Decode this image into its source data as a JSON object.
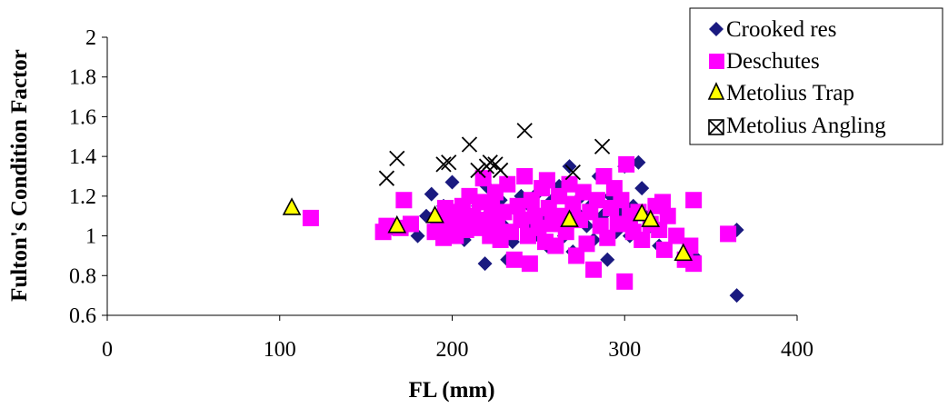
{
  "chart_data": {
    "type": "scatter",
    "title": "",
    "xlabel": "FL (mm)",
    "ylabel": "Fulton's Condition Factor",
    "xlim": [
      0,
      400
    ],
    "ylim": [
      0.6,
      2
    ],
    "x_ticks": [
      "0",
      "100",
      "200",
      "300",
      "400"
    ],
    "y_ticks": [
      "0.6",
      "0.8",
      "1",
      "1.2",
      "1.4",
      "1.6",
      "1.8",
      "2"
    ],
    "grid": false,
    "legend_position": "top-right",
    "series": [
      {
        "name": "Crooked res",
        "marker": "diamond",
        "color": "#1a1a80",
        "points": [
          [
            165,
            1.04
          ],
          [
            180,
            1.0
          ],
          [
            185,
            1.1
          ],
          [
            188,
            1.21
          ],
          [
            192,
            1.05
          ],
          [
            195,
            1.15
          ],
          [
            198,
            1.02
          ],
          [
            200,
            1.27
          ],
          [
            203,
            1.1
          ],
          [
            207,
            0.98
          ],
          [
            210,
            1.2
          ],
          [
            212,
            1.05
          ],
          [
            215,
            1.15
          ],
          [
            218,
            1.08
          ],
          [
            219,
            0.86
          ],
          [
            220,
            1.25
          ],
          [
            222,
            1.12
          ],
          [
            225,
            1.0
          ],
          [
            228,
            1.18
          ],
          [
            230,
            1.05
          ],
          [
            232,
            0.88
          ],
          [
            235,
            0.97
          ],
          [
            238,
            1.12
          ],
          [
            240,
            1.2
          ],
          [
            243,
            1.05
          ],
          [
            245,
            1.15
          ],
          [
            248,
            1.0
          ],
          [
            250,
            1.22
          ],
          [
            253,
            1.1
          ],
          [
            255,
            0.95
          ],
          [
            258,
            1.18
          ],
          [
            260,
            1.08
          ],
          [
            262,
            1.25
          ],
          [
            265,
            1.0
          ],
          [
            268,
            1.35
          ],
          [
            270,
            0.92
          ],
          [
            272,
            1.12
          ],
          [
            275,
            1.2
          ],
          [
            278,
            1.05
          ],
          [
            280,
            1.15
          ],
          [
            282,
            0.98
          ],
          [
            285,
            1.3
          ],
          [
            287,
            1.1
          ],
          [
            290,
            0.88
          ],
          [
            292,
            1.2
          ],
          [
            295,
            1.02
          ],
          [
            298,
            1.12
          ],
          [
            300,
            1.35
          ],
          [
            303,
            1.0
          ],
          [
            305,
            1.15
          ],
          [
            308,
            1.37
          ],
          [
            310,
            1.24
          ],
          [
            312,
            1.1
          ],
          [
            315,
            1.05
          ],
          [
            320,
            0.95
          ],
          [
            330,
            1.0
          ],
          [
            340,
            0.9
          ],
          [
            365,
            1.03
          ],
          [
            365,
            0.7
          ]
        ]
      },
      {
        "name": "Deschutes",
        "marker": "square",
        "color": "#ff00ff",
        "points": [
          [
            118,
            1.09
          ],
          [
            160,
            1.02
          ],
          [
            162,
            1.05
          ],
          [
            170,
            1.04
          ],
          [
            172,
            1.18
          ],
          [
            176,
            1.06
          ],
          [
            190,
            1.02
          ],
          [
            192,
            1.08
          ],
          [
            195,
            0.99
          ],
          [
            196,
            1.14
          ],
          [
            198,
            1.05
          ],
          [
            200,
            1.12
          ],
          [
            202,
            1.0
          ],
          [
            204,
            1.08
          ],
          [
            206,
            1.15
          ],
          [
            208,
            1.03
          ],
          [
            210,
            1.2
          ],
          [
            212,
            1.1
          ],
          [
            214,
            1.04
          ],
          [
            216,
            1.17
          ],
          [
            218,
            1.29
          ],
          [
            220,
            1.08
          ],
          [
            222,
            1.0
          ],
          [
            223,
            1.14
          ],
          [
            225,
            1.22
          ],
          [
            226,
            1.06
          ],
          [
            228,
            0.98
          ],
          [
            230,
            1.12
          ],
          [
            232,
            1.26
          ],
          [
            234,
            1.02
          ],
          [
            236,
            0.88
          ],
          [
            238,
            1.15
          ],
          [
            240,
            1.08
          ],
          [
            242,
            1.3
          ],
          [
            244,
            1.0
          ],
          [
            245,
            0.86
          ],
          [
            246,
            1.18
          ],
          [
            248,
            1.1
          ],
          [
            250,
            1.04
          ],
          [
            252,
            1.24
          ],
          [
            254,
            0.97
          ],
          [
            255,
            1.28
          ],
          [
            256,
            1.14
          ],
          [
            258,
            1.06
          ],
          [
            260,
            0.95
          ],
          [
            262,
            1.2
          ],
          [
            264,
            1.1
          ],
          [
            266,
            1.02
          ],
          [
            268,
            1.26
          ],
          [
            270,
            1.16
          ],
          [
            272,
            0.9
          ],
          [
            274,
            1.08
          ],
          [
            276,
            1.22
          ],
          [
            278,
            0.96
          ],
          [
            280,
            1.12
          ],
          [
            282,
            0.83
          ],
          [
            284,
            1.18
          ],
          [
            286,
            1.05
          ],
          [
            288,
            1.3
          ],
          [
            290,
            0.99
          ],
          [
            292,
            1.14
          ],
          [
            294,
            1.24
          ],
          [
            296,
            1.06
          ],
          [
            298,
            1.18
          ],
          [
            300,
            0.77
          ],
          [
            301,
            1.36
          ],
          [
            303,
            1.1
          ],
          [
            305,
            1.02
          ],
          [
            308,
            1.12
          ],
          [
            310,
            0.98
          ],
          [
            315,
            1.06
          ],
          [
            318,
            1.15
          ],
          [
            320,
            1.03
          ],
          [
            322,
            1.17
          ],
          [
            323,
            0.93
          ],
          [
            325,
            1.1
          ],
          [
            330,
            1.0
          ],
          [
            335,
            0.88
          ],
          [
            338,
            0.95
          ],
          [
            340,
            0.86
          ],
          [
            340,
            1.18
          ],
          [
            360,
            1.01
          ]
        ]
      },
      {
        "name": "Metolius Trap",
        "marker": "triangle",
        "color": "#ffff00",
        "points": [
          [
            107,
            1.14
          ],
          [
            168,
            1.05
          ],
          [
            190,
            1.1
          ],
          [
            268,
            1.08
          ],
          [
            310,
            1.11
          ],
          [
            315,
            1.08
          ],
          [
            334,
            0.91
          ]
        ]
      },
      {
        "name": "Metolius Angling",
        "marker": "x",
        "color": "#000000",
        "points": [
          [
            162,
            1.29
          ],
          [
            168,
            1.39
          ],
          [
            195,
            1.36
          ],
          [
            198,
            1.37
          ],
          [
            210,
            1.46
          ],
          [
            215,
            1.33
          ],
          [
            220,
            1.35
          ],
          [
            222,
            1.37
          ],
          [
            225,
            1.36
          ],
          [
            228,
            1.33
          ],
          [
            242,
            1.53
          ],
          [
            270,
            1.32
          ],
          [
            287,
            1.45
          ]
        ]
      }
    ]
  }
}
